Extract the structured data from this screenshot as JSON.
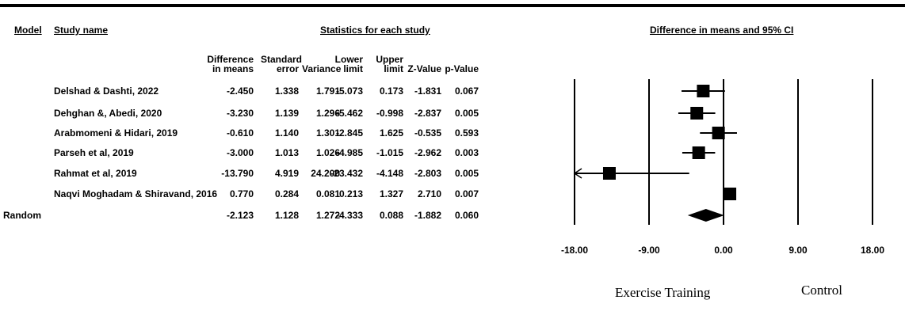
{
  "header": {
    "model": "Model",
    "study_name": "Study name",
    "stats_title": "Statistics for each study",
    "plot_title": "Difference in means and 95% CI"
  },
  "columns": [
    {
      "line1": "Difference",
      "line2": "in means"
    },
    {
      "line1": "Standard",
      "line2": "error"
    },
    {
      "line1": "",
      "line2": "Variance"
    },
    {
      "line1": "Lower",
      "line2": "limit"
    },
    {
      "line1": "Upper",
      "line2": "limit"
    },
    {
      "line1": "",
      "line2": "Z-Value"
    },
    {
      "line1": "",
      "line2": "p-Value"
    }
  ],
  "rows": [
    {
      "model": "",
      "study": "Delshad & Dashti, 2022",
      "cells": [
        "-2.450",
        "1.338",
        "1.791",
        "-5.073",
        "0.173",
        "-1.831",
        "0.067"
      ]
    },
    {
      "model": "",
      "study": "Dehghan &, Abedi, 2020",
      "cells": [
        "-3.230",
        "1.139",
        "1.296",
        "-5.462",
        "-0.998",
        "-2.837",
        "0.005"
      ]
    },
    {
      "model": "",
      "study": "Arabmomeni & Hidari, 2019",
      "cells": [
        "-0.610",
        "1.140",
        "1.301",
        "-2.845",
        "1.625",
        "-0.535",
        "0.593"
      ]
    },
    {
      "model": "",
      "study": "Parseh et al, 2019",
      "cells": [
        "-3.000",
        "1.013",
        "1.026",
        "-4.985",
        "-1.015",
        "-2.962",
        "0.003"
      ]
    },
    {
      "model": "",
      "study": "Rahmat et al, 2019",
      "cells": [
        "-13.790",
        "4.919",
        "24.200",
        "-23.432",
        "-4.148",
        "-2.803",
        "0.005"
      ]
    },
    {
      "model": "",
      "study": "Naqvi Moghadam & Shiravand, 2016",
      "cells": [
        "0.770",
        "0.284",
        "0.081",
        "0.213",
        "1.327",
        "2.710",
        "0.007"
      ]
    },
    {
      "model": "Random",
      "study": "",
      "cells": [
        "-2.123",
        "1.128",
        "1.272",
        "-4.333",
        "0.088",
        "-1.882",
        "0.060"
      ]
    }
  ],
  "chart_data": {
    "type": "forest",
    "title": "Difference in means and 95% CI",
    "xlim": [
      -18,
      18
    ],
    "xticks": [
      -18,
      -9,
      0,
      9,
      18
    ],
    "xtick_labels": [
      "-18.00",
      "-9.00",
      "0.00",
      "9.00",
      "18.00"
    ],
    "studies": [
      {
        "name": "Delshad & Dashti, 2022",
        "mean": -2.45,
        "lower": -5.073,
        "upper": 0.173
      },
      {
        "name": "Dehghan &, Abedi, 2020",
        "mean": -3.23,
        "lower": -5.462,
        "upper": -0.998
      },
      {
        "name": "Arabmomeni & Hidari, 2019",
        "mean": -0.61,
        "lower": -2.845,
        "upper": 1.625
      },
      {
        "name": "Parseh et al, 2019",
        "mean": -3.0,
        "lower": -4.985,
        "upper": -1.015
      },
      {
        "name": "Rahmat et al, 2019",
        "mean": -13.79,
        "lower": -23.432,
        "upper": -4.148
      },
      {
        "name": "Naqvi Moghadam & Shiravand, 2016",
        "mean": 0.77,
        "lower": 0.213,
        "upper": 1.327
      }
    ],
    "summary": {
      "name": "Random",
      "mean": -2.123,
      "lower": -4.333,
      "upper": 0.088
    },
    "left_label": "Exercise Training",
    "right_label": "Control"
  }
}
